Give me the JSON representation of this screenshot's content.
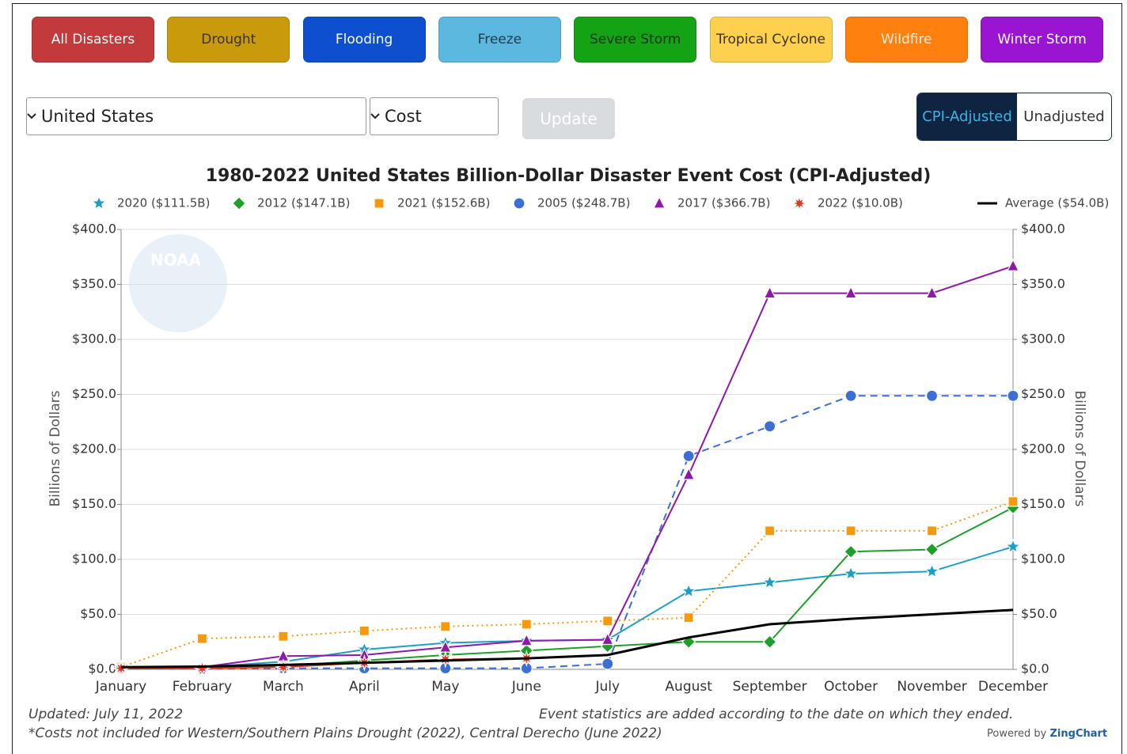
{
  "buttons": [
    {
      "label": "All Disasters",
      "color": "#c23a3c",
      "text_color": "#ffffff"
    },
    {
      "label": "Drought",
      "color": "#c99b0c",
      "text_color": "#3a3320"
    },
    {
      "label": "Flooding",
      "color": "#0d4fcf",
      "text_color": "#ffffff"
    },
    {
      "label": "Freeze",
      "color": "#5cb8df",
      "text_color": "#1f3c4a"
    },
    {
      "label": "Severe Storm",
      "color": "#14a314",
      "text_color": "#14330f"
    },
    {
      "label": "Tropical Cyclone",
      "color": "#fdd04e",
      "text_color": "#3a3320"
    },
    {
      "label": "Wildfire",
      "color": "#fe800f",
      "text_color": "#fbe9d8"
    },
    {
      "label": "Winter Storm",
      "color": "#9a15d2",
      "text_color": "#ffffff"
    }
  ],
  "controls": {
    "location": "United States",
    "metric": "Cost",
    "update": "Update",
    "toggle": [
      "CPI-Adjusted",
      "Unadjusted"
    ]
  },
  "logo": "NOAA",
  "chart_data": {
    "type": "line",
    "title": "1980-2022 United States Billion-Dollar Disaster Event Cost (CPI-Adjusted)",
    "ylabel": "Billions of Dollars",
    "y2label": "Billions of Dollars",
    "categories": [
      "January",
      "February",
      "March",
      "April",
      "May",
      "June",
      "July",
      "August",
      "September",
      "October",
      "November",
      "December"
    ],
    "ylim": [
      0,
      400
    ],
    "yticks": [
      {
        "value": 0,
        "label": "$0.0"
      },
      {
        "value": 50,
        "label": "$50.0"
      },
      {
        "value": 100,
        "label": "$100.0"
      },
      {
        "value": 150,
        "label": "$150.0"
      },
      {
        "value": 200,
        "label": "$200.0"
      },
      {
        "value": 250,
        "label": "$250.0"
      },
      {
        "value": 300,
        "label": "$300.0"
      },
      {
        "value": 350,
        "label": "$350.0"
      },
      {
        "value": 400,
        "label": "$400.0"
      }
    ],
    "y2lim": [
      0,
      400
    ],
    "y2ticks": [
      {
        "value": 0,
        "label": "$0.0"
      },
      {
        "value": 50,
        "label": "$50.0"
      },
      {
        "value": 100,
        "label": "$100.0"
      },
      {
        "value": 150,
        "label": "$150.0"
      },
      {
        "value": 200,
        "label": "$200.0"
      },
      {
        "value": 250,
        "label": "$250.0"
      },
      {
        "value": 300,
        "label": "$300.0"
      },
      {
        "value": 350,
        "label": "$350.0"
      },
      {
        "value": 400,
        "label": "$400.0"
      }
    ],
    "grid": true,
    "legend": "top",
    "series": [
      {
        "name": "2020 ($111.5B)",
        "color": "#1e9ec4",
        "style": "solid",
        "marker": "star",
        "values": [
          1,
          2,
          7,
          18,
          24,
          26,
          27,
          71,
          79,
          87,
          89,
          111.5
        ]
      },
      {
        "name": "2012 ($147.1B)",
        "color": "#1f9e2a",
        "style": "solid",
        "marker": "diamond",
        "values": [
          0.5,
          1,
          3,
          8,
          13,
          17,
          21,
          25,
          25,
          107,
          109,
          147.1
        ]
      },
      {
        "name": "2021 ($152.6B)",
        "color": "#f59a0c",
        "style": "dotted",
        "marker": "square",
        "values": [
          2,
          28,
          30,
          35,
          39,
          41,
          44,
          47,
          126,
          126,
          126,
          152.6
        ]
      },
      {
        "name": "2005 ($248.7B)",
        "color": "#3d6fd2",
        "style": "dashed",
        "marker": "circle",
        "values": [
          0.5,
          0.5,
          1,
          1,
          1,
          1,
          5,
          194,
          221,
          248.7,
          248.7,
          248.7
        ]
      },
      {
        "name": "2017 ($366.7B)",
        "color": "#8e18a8",
        "style": "solid",
        "marker": "triangle",
        "values": [
          1,
          2,
          12,
          13,
          20,
          26,
          27,
          177,
          342,
          342,
          342,
          366.7
        ]
      },
      {
        "name": "2022 ($10.0B)",
        "color": "#e03a1e",
        "style": "solid",
        "marker": "burst",
        "values": [
          1,
          1,
          2,
          6,
          9,
          10,
          null,
          null,
          null,
          null,
          null,
          null
        ]
      },
      {
        "name": "Average ($54.0B)",
        "color": "#000000",
        "style": "solid",
        "marker": "none",
        "values": [
          2,
          2.5,
          4,
          6,
          8,
          10,
          13,
          29,
          41,
          46,
          50,
          54
        ]
      }
    ]
  },
  "footer": {
    "updated": "Updated: July 11, 2022",
    "note": "*Costs not included for Western/Southern Plains Drought (2022), Central Derecho (June 2022)",
    "statistics": "Event statistics are added according to the date on which they ended.",
    "powered": "Powered by",
    "brand": "ZingChart"
  }
}
